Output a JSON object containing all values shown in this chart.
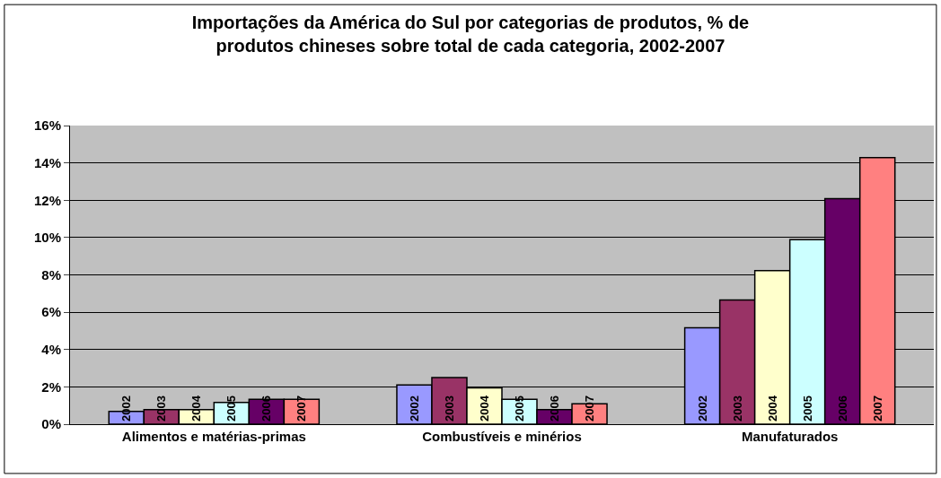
{
  "chart_data": {
    "type": "bar",
    "title": "Importações da América do Sul por categorias de produtos, % de produtos chineses sobre total de cada categoria, 2002-2007",
    "categories": [
      "Alimentos e matérias-primas",
      "Combustíveis e minérios",
      "Manufaturados"
    ],
    "series": [
      {
        "name": "2002",
        "color": "#9999ff",
        "values": [
          0.68,
          2.1,
          5.17
        ]
      },
      {
        "name": "2003",
        "color": "#993366",
        "values": [
          0.78,
          2.5,
          6.66
        ]
      },
      {
        "name": "2004",
        "color": "#ffffcc",
        "values": [
          0.78,
          1.94,
          8.23
        ]
      },
      {
        "name": "2005",
        "color": "#ccffff",
        "values": [
          1.17,
          1.33,
          9.88
        ]
      },
      {
        "name": "2006",
        "color": "#660066",
        "values": [
          1.33,
          0.78,
          12.08
        ]
      },
      {
        "name": "2007",
        "color": "#ff8080",
        "values": [
          1.33,
          1.09,
          14.28
        ]
      }
    ],
    "ylim": [
      0,
      16
    ],
    "yticks": [
      {
        "value": 0,
        "label": "0%"
      },
      {
        "value": 2,
        "label": "2%"
      },
      {
        "value": 4,
        "label": "4%"
      },
      {
        "value": 6,
        "label": "6%"
      },
      {
        "value": 8,
        "label": "8%"
      },
      {
        "value": 10,
        "label": "10%"
      },
      {
        "value": 12,
        "label": "12%"
      },
      {
        "value": 14,
        "label": "14%"
      },
      {
        "value": 16,
        "label": "16%"
      }
    ],
    "grid": "y",
    "legend": false
  }
}
